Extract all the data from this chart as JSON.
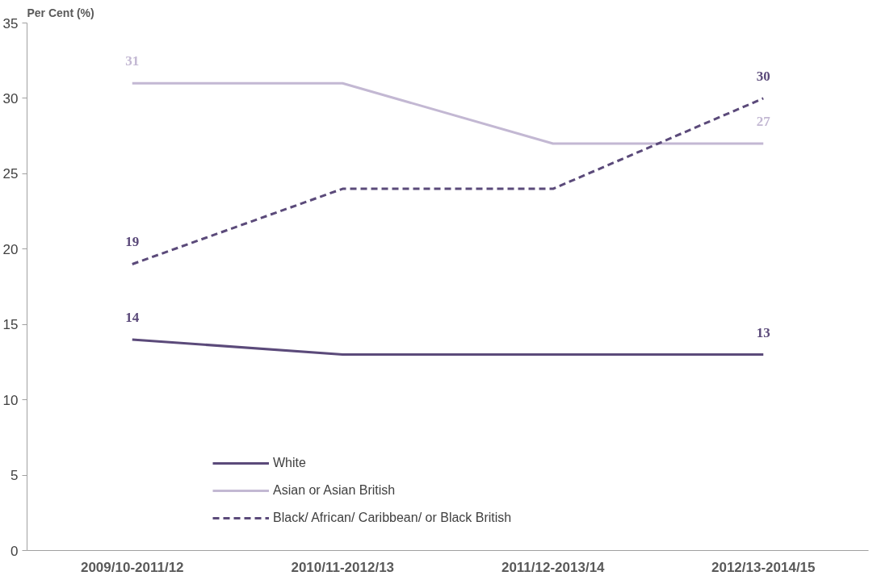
{
  "chart_data": {
    "type": "line",
    "ylabel": "Per Cent (%)",
    "categories": [
      "2009/10-2011/12",
      "2010/11-2012/13",
      "2011/12-2013/14",
      "2012/13-2014/15"
    ],
    "series": [
      {
        "name": "White",
        "color": "#5b4a7a",
        "line_style": "solid",
        "values": [
          14,
          13,
          13,
          13
        ],
        "value_labels": [
          "14",
          null,
          null,
          "13"
        ]
      },
      {
        "name": "Asian or Asian British",
        "color": "#c3b8d3",
        "line_style": "solid",
        "values": [
          31,
          31,
          27,
          27
        ],
        "value_labels": [
          "31",
          null,
          null,
          "27"
        ]
      },
      {
        "name": "Black/ African/ Caribbean/ or Black British",
        "color": "#5b4a7a",
        "line_style": "dashed",
        "values": [
          19,
          24,
          24,
          30
        ],
        "value_labels": [
          "19",
          null,
          null,
          "30"
        ]
      }
    ],
    "ylim": [
      0,
      35
    ],
    "yticks": [
      0,
      5,
      10,
      15,
      20,
      25,
      30,
      35
    ],
    "grid": false,
    "legend": "bottom left",
    "marker": "none"
  }
}
